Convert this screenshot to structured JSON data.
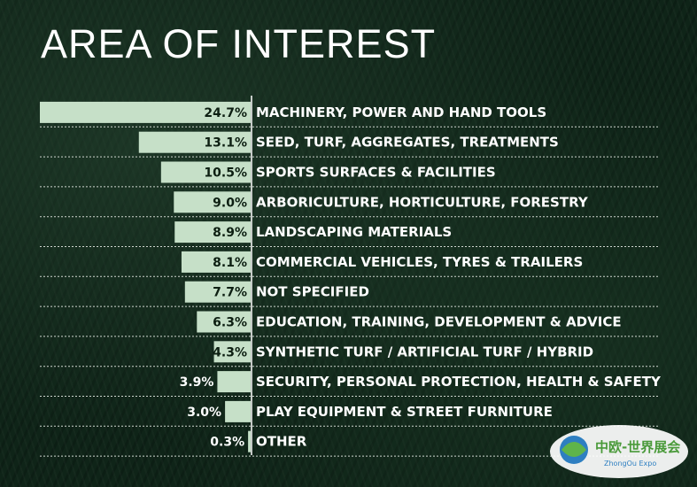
{
  "title": "AREA OF INTEREST",
  "chart_data": {
    "type": "bar",
    "orientation": "horizontal",
    "title": "AREA OF INTEREST",
    "unit": "%",
    "categories": [
      "MACHINERY, POWER AND HAND TOOLS",
      "SEED, TURF, AGGREGATES, TREATMENTS",
      "SPORTS SURFACES & FACILITIES",
      "ARBORICULTURE, HORTICULTURE, FORESTRY",
      "LANDSCAPING MATERIALS",
      "COMMERCIAL VEHICLES, TYRES & TRAILERS",
      "NOT SPECIFIED",
      "EDUCATION, TRAINING, DEVELOPMENT & ADVICE",
      "SYNTHETIC TURF / ARTIFICIAL TURF / HYBRID",
      "SECURITY, PERSONAL PROTECTION, HEALTH & SAFETY",
      "PLAY EQUIPMENT & STREET FURNITURE",
      "OTHER"
    ],
    "values": [
      24.7,
      13.1,
      10.5,
      9.0,
      8.9,
      8.1,
      7.7,
      6.3,
      4.3,
      3.9,
      3.0,
      0.3
    ],
    "labels": [
      "24.7%",
      "13.1%",
      "10.5%",
      "9.0%",
      "8.9%",
      "8.1%",
      "7.7%",
      "6.3%",
      "4.3%",
      "3.9%",
      "3.0%",
      "0.3%"
    ],
    "xlim": [
      0,
      24.7
    ],
    "grid": false,
    "colors": {
      "bar": "#c6e0c8",
      "background": "#0f2418",
      "text": "#ffffff"
    }
  },
  "logo": {
    "text_main": "中欧-世界展会",
    "text_sub": "ZhongOu Expo"
  }
}
